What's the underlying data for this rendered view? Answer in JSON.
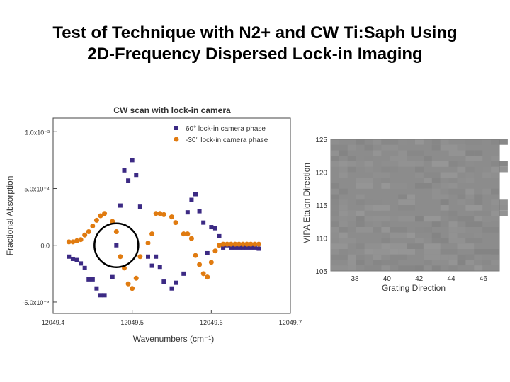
{
  "slide": {
    "title_line1": "Test of Technique with N2+ and CW Ti:Saph Using",
    "title_line2": "2D-Frequency Dispersed Lock-in Imaging"
  },
  "chart_data": [
    {
      "type": "scatter",
      "title": "CW scan with lock-in camera",
      "xlabel": "Wavenumbers (cm⁻¹)",
      "ylabel": "Fractional Absorption",
      "xlim": [
        12049.4,
        12049.7
      ],
      "ylim": [
        -0.0006,
        0.00112
      ],
      "x_ticks": [
        12049.4,
        12049.5,
        12049.6,
        12049.7
      ],
      "x_tick_labels": [
        "12049.4",
        "12049.5",
        "12049.6",
        "12049.7"
      ],
      "y_ticks": [
        -0.0005,
        0.0,
        0.0005,
        0.001
      ],
      "y_tick_labels": [
        "-5.0x10⁻⁴",
        "0.0",
        "5.0x10⁻⁴",
        "1.0x10⁻³"
      ],
      "legend_position": "top-right",
      "series": [
        {
          "name": "60° lock-in camera phase",
          "color": "#3c2a84",
          "marker": "square",
          "x": [
            12049.42,
            12049.425,
            12049.43,
            12049.435,
            12049.44,
            12049.445,
            12049.45,
            12049.455,
            12049.46,
            12049.465,
            12049.475,
            12049.48,
            12049.485,
            12049.49,
            12049.495,
            12049.5,
            12049.505,
            12049.51,
            12049.52,
            12049.525,
            12049.53,
            12049.535,
            12049.54,
            12049.55,
            12049.555,
            12049.565,
            12049.57,
            12049.575,
            12049.58,
            12049.585,
            12049.59,
            12049.595,
            12049.6,
            12049.605,
            12049.61,
            12049.615,
            12049.62,
            12049.625,
            12049.63,
            12049.635,
            12049.64,
            12049.645,
            12049.65,
            12049.655,
            12049.66
          ],
          "y": [
            -0.0001,
            -0.00012,
            -0.00013,
            -0.00016,
            -0.0002,
            -0.0003,
            -0.0003,
            -0.00038,
            -0.00044,
            -0.00044,
            -0.00028,
            0.0,
            0.00035,
            0.00066,
            0.00057,
            0.00075,
            0.00062,
            0.00034,
            -0.0001,
            -0.00018,
            -0.0001,
            -0.00019,
            -0.00032,
            -0.00038,
            -0.00033,
            -0.00025,
            0.00029,
            0.0004,
            0.00045,
            0.0003,
            0.0002,
            -7e-05,
            0.00016,
            0.00015,
            8e-05,
            -2e-05,
            0.0,
            -2e-05,
            -2e-05,
            -2e-05,
            -2e-05,
            -2e-05,
            -2e-05,
            -2e-05,
            -3e-05
          ]
        },
        {
          "name": "-30° lock-in camera phase",
          "color": "#e07b10",
          "marker": "circle",
          "x": [
            12049.42,
            12049.425,
            12049.43,
            12049.435,
            12049.44,
            12049.445,
            12049.45,
            12049.455,
            12049.46,
            12049.465,
            12049.475,
            12049.48,
            12049.485,
            12049.49,
            12049.495,
            12049.5,
            12049.505,
            12049.51,
            12049.52,
            12049.525,
            12049.53,
            12049.535,
            12049.54,
            12049.55,
            12049.555,
            12049.565,
            12049.57,
            12049.575,
            12049.58,
            12049.585,
            12049.59,
            12049.595,
            12049.6,
            12049.605,
            12049.61,
            12049.615,
            12049.62,
            12049.625,
            12049.63,
            12049.635,
            12049.64,
            12049.645,
            12049.65,
            12049.655,
            12049.66
          ],
          "y": [
            3e-05,
            3e-05,
            4e-05,
            5e-05,
            9e-05,
            0.00012,
            0.00017,
            0.00022,
            0.00026,
            0.00028,
            0.00021,
            0.00012,
            -0.0001,
            -0.0002,
            -0.00034,
            -0.00038,
            -0.00029,
            -0.0001,
            2e-05,
            0.0001,
            0.00028,
            0.00028,
            0.00027,
            0.00025,
            0.0002,
            0.0001,
            0.0001,
            6e-05,
            -9e-05,
            -0.00017,
            -0.00025,
            -0.00028,
            -0.00015,
            -5e-05,
            0.0,
            1e-05,
            1e-05,
            1e-05,
            1e-05,
            1e-05,
            1e-05,
            1e-05,
            1e-05,
            1e-05,
            1e-05
          ]
        }
      ],
      "annotations": [
        {
          "shape": "circle",
          "center": [
            12049.48,
            0.0
          ],
          "description": "circled region"
        }
      ]
    },
    {
      "type": "heatmap",
      "xlabel": "Grating Direction",
      "ylabel": "VIPA Etalon Direction",
      "xlim": [
        36.5,
        47
      ],
      "ylim": [
        105,
        125
      ],
      "x_ticks": [
        38,
        40,
        42,
        44,
        46
      ],
      "x_tick_labels": [
        "38",
        "40",
        "42",
        "44",
        "46"
      ],
      "y_ticks": [
        105,
        110,
        115,
        120,
        125
      ],
      "y_tick_labels": [
        "105",
        "110",
        "115",
        "120",
        "125"
      ],
      "colormap": "gray",
      "base_color": "#8c8c8c"
    }
  ]
}
